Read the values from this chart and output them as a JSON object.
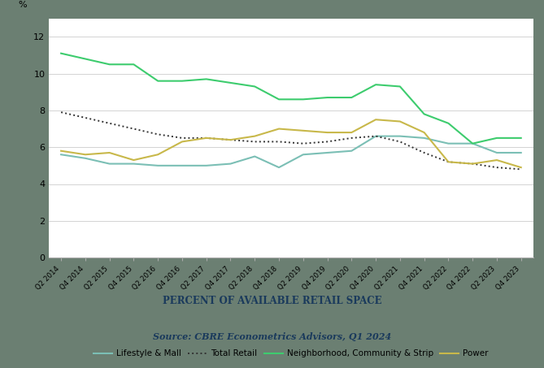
{
  "title": "PERCENT OF AVAILABLE RETAIL SPACE",
  "source": "Source: CBRE Econometrics Advisors, Q1 2024",
  "ylabel": "%",
  "ylim": [
    0,
    13
  ],
  "yticks": [
    0,
    2,
    4,
    6,
    8,
    10,
    12
  ],
  "background_chart": "#ffffff",
  "background_footer": "#6b7f72",
  "x_labels": [
    "Q2 2014",
    "Q4 2014",
    "Q2 2015",
    "Q4 2015",
    "Q2 2016",
    "Q4 2016",
    "Q2 2017",
    "Q4 2017",
    "Q2 2018",
    "Q4 2018",
    "Q2 2019",
    "Q4 2019",
    "Q2 2020",
    "Q4 2020",
    "Q2 2021",
    "Q4 2021",
    "Q2 2022",
    "Q4 2022",
    "Q2 2023",
    "Q4 2023"
  ],
  "lifestyle_mall": [
    5.6,
    5.4,
    5.1,
    5.1,
    5.0,
    5.0,
    5.0,
    5.1,
    5.5,
    4.9,
    5.6,
    5.7,
    5.8,
    6.6,
    6.6,
    6.5,
    6.2,
    6.2,
    5.7,
    5.7
  ],
  "total_retail": [
    7.9,
    7.6,
    7.3,
    7.0,
    6.7,
    6.5,
    6.5,
    6.4,
    6.3,
    6.3,
    6.2,
    6.3,
    6.5,
    6.6,
    6.3,
    5.7,
    5.2,
    5.1,
    4.9,
    4.8
  ],
  "neighborhood": [
    11.1,
    10.8,
    10.5,
    10.5,
    9.6,
    9.6,
    9.7,
    9.5,
    9.3,
    8.6,
    8.6,
    8.7,
    8.7,
    9.4,
    9.3,
    7.8,
    7.3,
    6.2,
    6.5,
    6.5
  ],
  "power": [
    5.8,
    5.6,
    5.7,
    5.3,
    5.6,
    6.3,
    6.5,
    6.4,
    6.6,
    7.0,
    6.9,
    6.8,
    6.8,
    7.5,
    7.4,
    6.8,
    5.2,
    5.1,
    5.3,
    4.9
  ],
  "lifestyle_color": "#7bbfb5",
  "total_retail_color": "#333333",
  "neighborhood_color": "#3dcc6e",
  "power_color": "#c8b84a",
  "grid_color": "#cccccc",
  "title_color": "#1a3a5c",
  "source_color": "#1a3a5c",
  "footer_color": "#6b7f72"
}
